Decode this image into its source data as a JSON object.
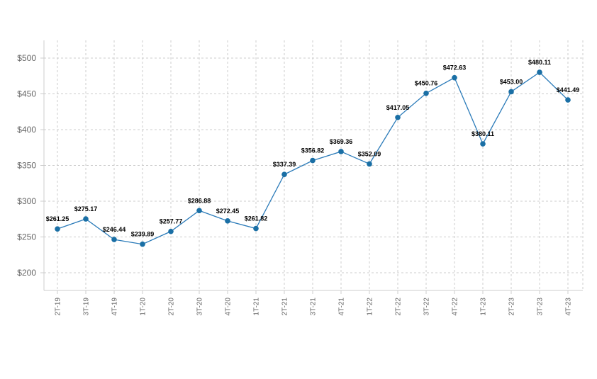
{
  "chart_data": {
    "type": "line",
    "categories": [
      "2T-19",
      "3T-19",
      "4T-19",
      "1T-20",
      "2T-20",
      "3T-20",
      "4T-20",
      "1T-21",
      "2T-21",
      "3T-21",
      "4T-21",
      "1T-22",
      "2T-22",
      "3T-22",
      "4T-22",
      "1T-23",
      "2T-23",
      "3T-23",
      "4T-23"
    ],
    "series": [
      {
        "values": [
          261.25,
          275.17,
          246.44,
          239.89,
          257.77,
          286.88,
          272.45,
          261.82,
          337.39,
          356.82,
          369.36,
          352.09,
          417.05,
          450.76,
          472.63,
          380.11,
          453.0,
          480.11,
          441.49
        ],
        "labels": [
          "$261.25",
          "$275.17",
          "$246.44",
          "$239.89",
          "$257.77",
          "$286.88",
          "$272.45",
          "$261.82",
          "$337.39",
          "$356.82",
          "$369.36",
          "$352.09",
          "$417.05",
          "$450.76",
          "$472.63",
          "$380.11",
          "$453.00",
          "$480.11",
          "$441.49"
        ]
      }
    ],
    "yticks": [
      200,
      250,
      300,
      350,
      400,
      450,
      500
    ],
    "ytick_labels": [
      "$200",
      "$250",
      "$300",
      "$350",
      "$400",
      "$450",
      "$500"
    ],
    "ylim": [
      175,
      525
    ],
    "grid": true,
    "line_color": "#2b7bb9",
    "point_color": "#1a6fa5"
  }
}
